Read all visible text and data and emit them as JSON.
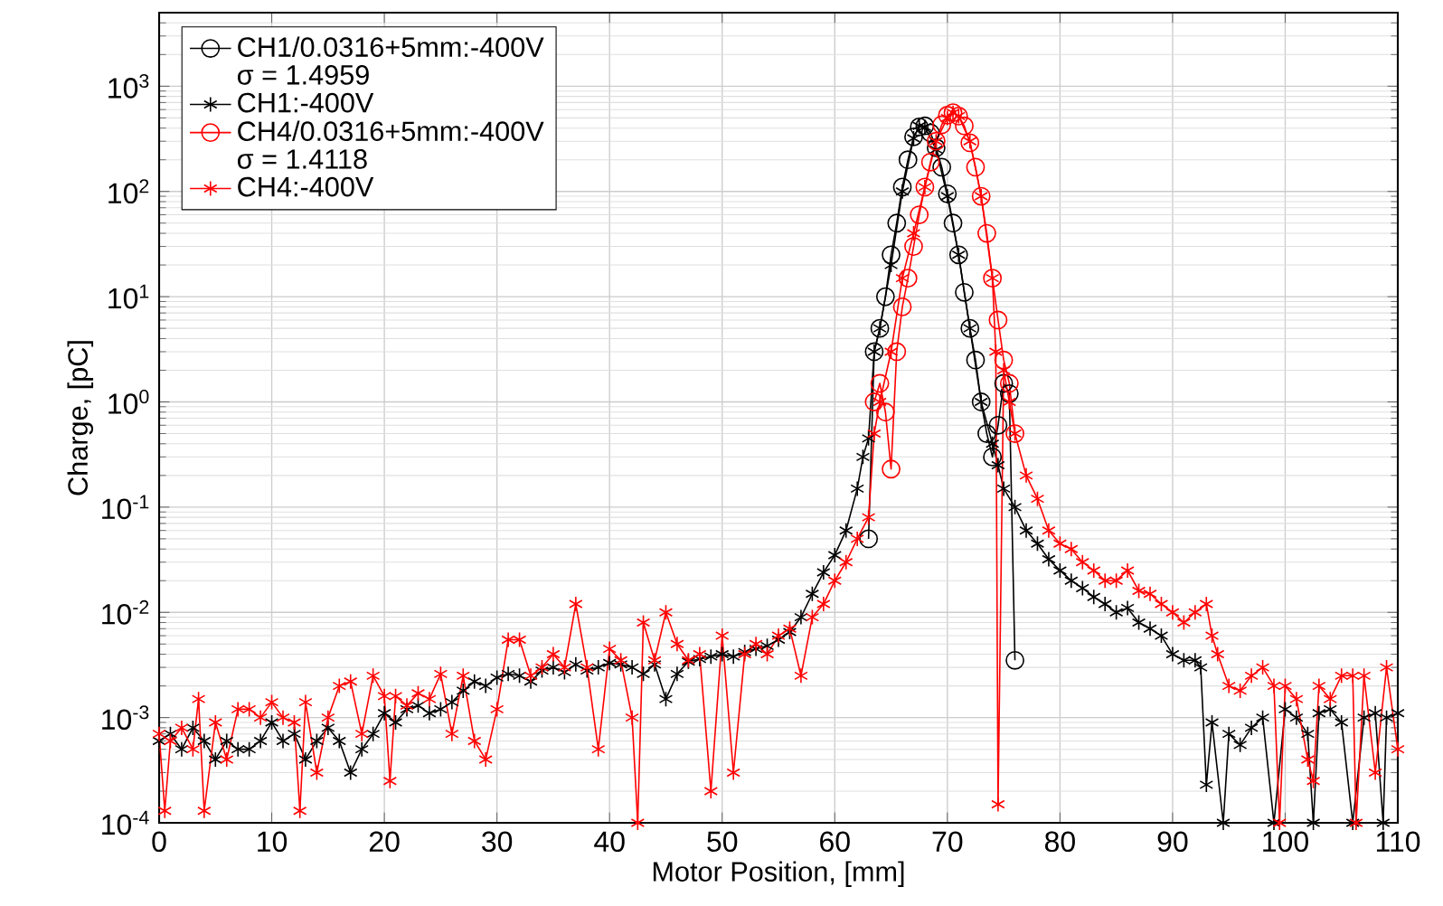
{
  "chart_data": {
    "type": "line",
    "xlabel": "Motor Position, [mm]",
    "ylabel": "Charge, [pC]",
    "log": "y",
    "grid": true,
    "legend": "top left",
    "line_style": "solid",
    "xlim": [
      0,
      110
    ],
    "xticks": [
      0,
      10,
      20,
      30,
      40,
      50,
      60,
      70,
      80,
      90,
      100,
      110
    ],
    "ylim": [
      0.0001,
      5000
    ],
    "yticks": [
      {
        "value": 0.0001,
        "label": "10$^{-4}$"
      },
      {
        "value": 0.001,
        "label": "10$^{-3}$"
      },
      {
        "value": 0.01,
        "label": "10$^{-2}$"
      },
      {
        "value": 0.1,
        "label": "10$^{-1}$"
      },
      {
        "value": 1,
        "label": "10$^{0}$"
      },
      {
        "value": 10,
        "label": "10$^{1}$"
      },
      {
        "value": 100,
        "label": "10$^{2}$"
      },
      {
        "value": 1000,
        "label": "10$^{3}$"
      }
    ],
    "annotations": [
      "σ = 1.4959",
      "σ = 1.4118"
    ],
    "series": [
      {
        "name": "CH1/0.0316+5mm:-400V",
        "color": "#000000",
        "marker": "circle",
        "x": [
          63,
          63.5,
          64,
          64.5,
          65,
          65.5,
          66,
          66.5,
          67,
          67.5,
          68,
          68.5,
          69,
          69.5,
          70,
          70.5,
          71,
          71.5,
          72,
          72.5,
          73,
          73.5,
          74,
          74.5,
          75,
          75.5,
          76
        ],
        "values": [
          0.05,
          3,
          5,
          10,
          25,
          50,
          110,
          200,
          330,
          410,
          420,
          360,
          260,
          170,
          95,
          50,
          25,
          11,
          5,
          2.5,
          1,
          0.5,
          0.3,
          0.6,
          1.5,
          1.2,
          0.0035
        ]
      },
      {
        "name": "CH1:-400V",
        "color": "#000000",
        "marker": "cross",
        "x": [
          0,
          1,
          2,
          3,
          4,
          5,
          6,
          7,
          8,
          9,
          10,
          11,
          12,
          13,
          14,
          15,
          16,
          17,
          18,
          19,
          20,
          21,
          22,
          23,
          24,
          25,
          26,
          27,
          28,
          29,
          30,
          31,
          32,
          33,
          34,
          35,
          36,
          37,
          38,
          39,
          40,
          41,
          42,
          43,
          44,
          45,
          46,
          47,
          48,
          49,
          50,
          51,
          52,
          53,
          54,
          55,
          56,
          57,
          58,
          59,
          60,
          61,
          62,
          62.5,
          63,
          63.5,
          64,
          65,
          66,
          67,
          67.5,
          68,
          69,
          70,
          71,
          72,
          73,
          74,
          74.5,
          75,
          76,
          77,
          78,
          79,
          80,
          81,
          82,
          83,
          84,
          85,
          86,
          87,
          88,
          89,
          90,
          91,
          92,
          92.5,
          93,
          93.5,
          94.5,
          95,
          96,
          97,
          98,
          99,
          100,
          101,
          102,
          102.5,
          103,
          104,
          105,
          106,
          107,
          108,
          108.7,
          109,
          110
        ],
        "values": [
          0.0006,
          0.0007,
          0.0005,
          0.0008,
          0.0006,
          0.0004,
          0.0006,
          0.0005,
          0.0005,
          0.0006,
          0.0009,
          0.0006,
          0.0007,
          0.0004,
          0.0006,
          0.0008,
          0.0006,
          0.0003,
          0.0005,
          0.0007,
          0.0011,
          0.0009,
          0.0012,
          0.0013,
          0.0011,
          0.0012,
          0.0014,
          0.0018,
          0.0022,
          0.002,
          0.0024,
          0.0026,
          0.0025,
          0.0022,
          0.0028,
          0.003,
          0.0027,
          0.0032,
          0.0028,
          0.003,
          0.0033,
          0.0032,
          0.003,
          0.0026,
          0.0032,
          0.0015,
          0.0026,
          0.0034,
          0.0036,
          0.0038,
          0.004,
          0.0038,
          0.0042,
          0.0045,
          0.0048,
          0.0055,
          0.0065,
          0.009,
          0.015,
          0.024,
          0.035,
          0.06,
          0.15,
          0.3,
          0.45,
          3,
          5,
          20,
          100,
          320,
          420,
          410,
          250,
          90,
          25,
          5,
          1,
          0.4,
          0.25,
          0.15,
          0.1,
          0.06,
          0.045,
          0.032,
          0.025,
          0.02,
          0.017,
          0.014,
          0.012,
          0.01,
          0.011,
          0.008,
          0.007,
          0.006,
          0.004,
          0.0035,
          0.0035,
          0.003,
          0.00023,
          0.0009,
          0.0001,
          0.0007,
          0.00055,
          0.0008,
          0.001,
          0.0001,
          0.0012,
          0.001,
          0.0007,
          0.0001,
          0.0011,
          0.0012,
          0.0009,
          0.0001,
          0.001,
          0.0011,
          0.0001,
          0.001,
          0.0011
        ]
      },
      {
        "name": "CH4/0.0316+5mm:-400V",
        "color": "#ff0000",
        "marker": "circle",
        "x": [
          63.5,
          64,
          64.5,
          65,
          65.5,
          66,
          66.5,
          67,
          67.5,
          68,
          68.5,
          69,
          69.5,
          70,
          70.5,
          71,
          71.5,
          72,
          72.5,
          73,
          73.5,
          74,
          74.5,
          75,
          75.5,
          76
        ],
        "values": [
          1,
          1.5,
          0.8,
          0.23,
          3,
          8,
          15,
          30,
          60,
          110,
          190,
          300,
          430,
          530,
          560,
          520,
          420,
          290,
          170,
          90,
          40,
          15,
          6,
          2.5,
          1.5,
          0.5
        ]
      },
      {
        "name": "CH4:-400V",
        "color": "#ff0000",
        "marker": "cross",
        "x": [
          0,
          0.5,
          1,
          2,
          3,
          3.5,
          4,
          5,
          6,
          7,
          8,
          9,
          10,
          11,
          12,
          12.5,
          13,
          14,
          15,
          16,
          17,
          18,
          19,
          20,
          20.5,
          21,
          22,
          23,
          24,
          25,
          26,
          27,
          28,
          29,
          30,
          31,
          32,
          33,
          34,
          35,
          36,
          37,
          38,
          39,
          40,
          41,
          42,
          42.5,
          43,
          44,
          45,
          46,
          47,
          48,
          49,
          50,
          51,
          52,
          53,
          54,
          55,
          56,
          57,
          58,
          59,
          60,
          61,
          62,
          63,
          63.5,
          64,
          65,
          66,
          67,
          68,
          69,
          70,
          70.5,
          71,
          72,
          73,
          74,
          74.3,
          74.5,
          75,
          75.5,
          76,
          77,
          78,
          79,
          80,
          81,
          82,
          83,
          84,
          85,
          86,
          87,
          88,
          89,
          90,
          91,
          92,
          93,
          93.5,
          94,
          95,
          96,
          97,
          98,
          99,
          99.5,
          100,
          101,
          102,
          102.5,
          103,
          104,
          105,
          106,
          106.3,
          107,
          108,
          109,
          110
        ],
        "values": [
          0.0007,
          0.00013,
          0.0006,
          0.0008,
          0.0005,
          0.0015,
          0.00013,
          0.0009,
          0.0004,
          0.0012,
          0.0012,
          0.001,
          0.0014,
          0.001,
          0.0009,
          0.00013,
          0.0014,
          0.0003,
          0.001,
          0.002,
          0.0022,
          0.0007,
          0.0025,
          0.0016,
          0.00025,
          0.0016,
          0.0013,
          0.0017,
          0.0015,
          0.0026,
          0.0007,
          0.0025,
          0.0006,
          0.0004,
          0.0012,
          0.0055,
          0.0055,
          0.0025,
          0.003,
          0.004,
          0.003,
          0.012,
          0.003,
          0.0005,
          0.0045,
          0.0035,
          0.001,
          0.0001,
          0.008,
          0.0035,
          0.01,
          0.005,
          0.0035,
          0.004,
          0.0002,
          0.006,
          0.0003,
          0.004,
          0.005,
          0.004,
          0.006,
          0.007,
          0.0025,
          0.009,
          0.012,
          0.02,
          0.03,
          0.05,
          0.08,
          0.5,
          1,
          3,
          15,
          40,
          110,
          300,
          500,
          560,
          520,
          300,
          90,
          15,
          3,
          0.00015,
          2,
          1,
          0.5,
          0.2,
          0.12,
          0.06,
          0.045,
          0.04,
          0.03,
          0.025,
          0.02,
          0.02,
          0.025,
          0.016,
          0.015,
          0.012,
          0.01,
          0.008,
          0.01,
          0.012,
          0.006,
          0.004,
          0.002,
          0.0018,
          0.0025,
          0.003,
          0.002,
          0.0001,
          0.002,
          0.0015,
          0.0004,
          0.00025,
          0.002,
          0.0015,
          0.0025,
          0.0025,
          0.0001,
          0.0025,
          0.0003,
          0.003,
          0.0005
        ]
      }
    ]
  }
}
